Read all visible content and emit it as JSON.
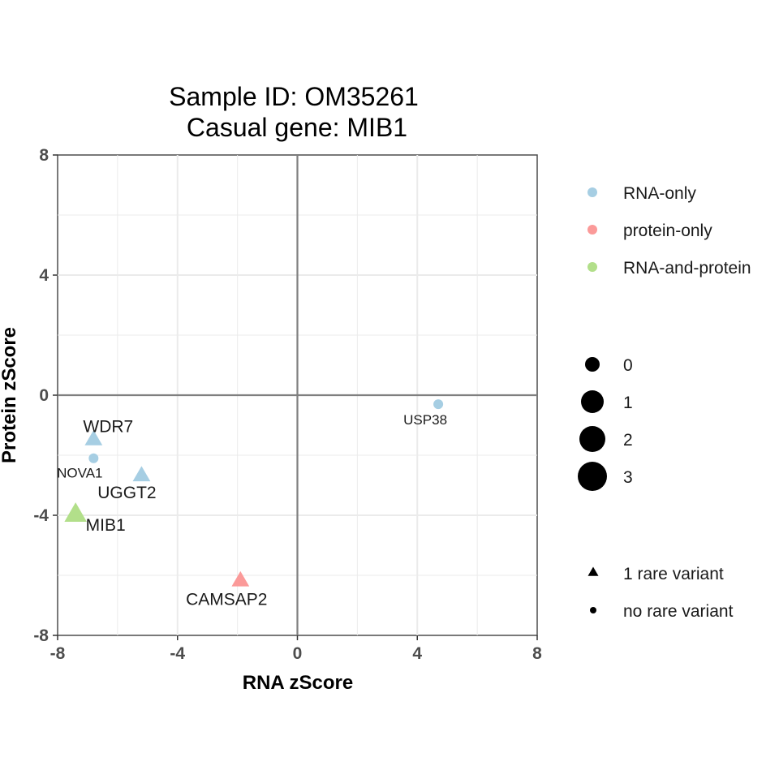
{
  "chart_data": {
    "type": "scatter",
    "title_lines": [
      "Sample ID: OM35261",
      "Casual gene: MIB1"
    ],
    "xlabel": "RNA zScore",
    "ylabel": "Protein zScore",
    "xlim": [
      -8,
      8
    ],
    "ylim": [
      -8,
      8
    ],
    "x_ticks": [
      -8,
      -4,
      0,
      4,
      8
    ],
    "y_ticks": [
      -8,
      -4,
      0,
      4,
      8
    ],
    "x_tick_labels": [
      "-8",
      "-4",
      "0",
      "4",
      "8"
    ],
    "y_tick_labels": [
      "-8",
      "-4",
      "0",
      "4",
      "8"
    ],
    "grid": true,
    "zero_lines": true,
    "legend_position": "right",
    "category_colors": {
      "RNA-only": "#a6cee3",
      "protein-only": "#fb9a99",
      "RNA-and-protein": "#b2df8a"
    },
    "points": [
      {
        "label": "USP38",
        "x": 4.7,
        "y": -0.3,
        "category": "RNA-only",
        "size": 0,
        "rare_variant": false
      },
      {
        "label": "WDR7",
        "x": -6.8,
        "y": -1.5,
        "category": "RNA-only",
        "size": 1,
        "rare_variant": true
      },
      {
        "label": "NOVA1",
        "x": -6.8,
        "y": -2.1,
        "category": "RNA-only",
        "size": 0,
        "rare_variant": false
      },
      {
        "label": "UGGT2",
        "x": -5.2,
        "y": -2.7,
        "category": "RNA-only",
        "size": 1,
        "rare_variant": true
      },
      {
        "label": "MIB1",
        "x": -7.4,
        "y": -4.0,
        "category": "RNA-and-protein",
        "size": 3,
        "rare_variant": true
      },
      {
        "label": "CAMSAP2",
        "x": -1.9,
        "y": -6.2,
        "category": "protein-only",
        "size": 1,
        "rare_variant": true
      }
    ],
    "legend": {
      "color_entries": [
        "RNA-only",
        "protein-only",
        "RNA-and-protein"
      ],
      "size_entries": [
        "0",
        "1",
        "2",
        "3"
      ],
      "shape_entries": [
        "1 rare variant",
        "no rare variant"
      ]
    }
  }
}
